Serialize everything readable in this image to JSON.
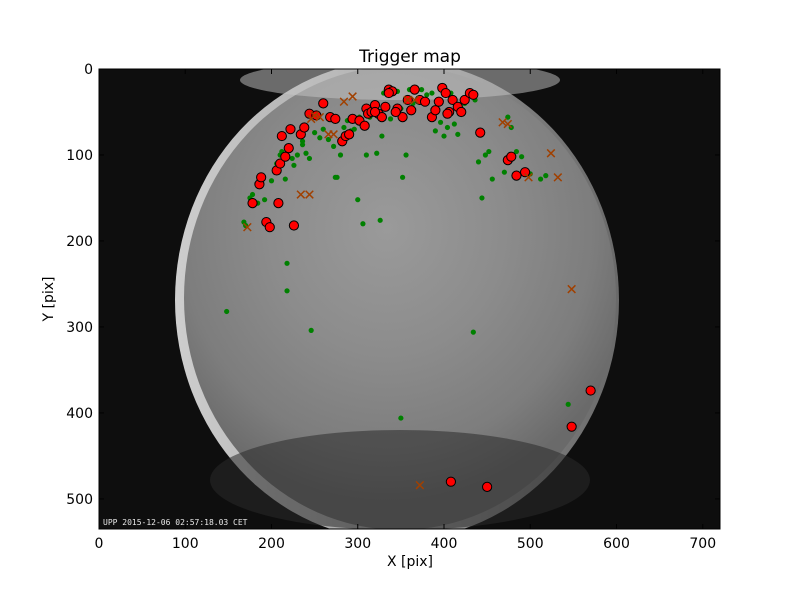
{
  "chart_data": {
    "type": "scatter",
    "title": "Trigger map",
    "xlabel": "X [pix]",
    "ylabel": "Y [pix]",
    "xlim": [
      0,
      720
    ],
    "ylim": [
      535,
      0
    ],
    "xticks": [
      0,
      100,
      200,
      300,
      400,
      500,
      600,
      700
    ],
    "yticks": [
      0,
      100,
      200,
      300,
      400,
      500
    ],
    "grid": false,
    "background_image": "all-sky camera frame (fisheye)",
    "timestamp_text": "UPP 2015-12-06 02:57:18.03 CET",
    "series": [
      {
        "marker": "small-dot",
        "color": "#008000",
        "points": [
          [
            168,
            178
          ],
          [
            170,
            182
          ],
          [
            175,
            150
          ],
          [
            178,
            146
          ],
          [
            184,
            156
          ],
          [
            192,
            152
          ],
          [
            200,
            130
          ],
          [
            204,
            120
          ],
          [
            206,
            110
          ],
          [
            210,
            100
          ],
          [
            212,
            96
          ],
          [
            216,
            128
          ],
          [
            218,
            90
          ],
          [
            224,
            104
          ],
          [
            226,
            112
          ],
          [
            230,
            100
          ],
          [
            236,
            84
          ],
          [
            240,
            98
          ],
          [
            244,
            104
          ],
          [
            250,
            74
          ],
          [
            256,
            80
          ],
          [
            260,
            70
          ],
          [
            266,
            82
          ],
          [
            272,
            90
          ],
          [
            274,
            126
          ],
          [
            276,
            126
          ],
          [
            280,
            100
          ],
          [
            284,
            68
          ],
          [
            288,
            60
          ],
          [
            292,
            72
          ],
          [
            296,
            70
          ],
          [
            300,
            62
          ],
          [
            302,
            56
          ],
          [
            306,
            180
          ],
          [
            310,
            100
          ],
          [
            314,
            56
          ],
          [
            318,
            52
          ],
          [
            322,
            98
          ],
          [
            326,
            176
          ],
          [
            328,
            78
          ],
          [
            330,
            28
          ],
          [
            334,
            46
          ],
          [
            338,
            58
          ],
          [
            342,
            24
          ],
          [
            346,
            26
          ],
          [
            350,
            46
          ],
          [
            352,
            126
          ],
          [
            356,
            100
          ],
          [
            360,
            24
          ],
          [
            364,
            40
          ],
          [
            368,
            22
          ],
          [
            374,
            24
          ],
          [
            380,
            30
          ],
          [
            386,
            28
          ],
          [
            390,
            72
          ],
          [
            396,
            62
          ],
          [
            400,
            78
          ],
          [
            404,
            68
          ],
          [
            408,
            28
          ],
          [
            412,
            64
          ],
          [
            416,
            76
          ],
          [
            420,
            46
          ],
          [
            424,
            40
          ],
          [
            428,
            30
          ],
          [
            436,
            36
          ],
          [
            440,
            108
          ],
          [
            444,
            150
          ],
          [
            448,
            100
          ],
          [
            452,
            96
          ],
          [
            456,
            128
          ],
          [
            470,
            120
          ],
          [
            474,
            56
          ],
          [
            478,
            68
          ],
          [
            484,
            96
          ],
          [
            490,
            102
          ],
          [
            500,
            122
          ],
          [
            512,
            128
          ],
          [
            518,
            124
          ],
          [
            544,
            390
          ],
          [
            350,
            406
          ],
          [
            434,
            306
          ],
          [
            246,
            304
          ],
          [
            218,
            258
          ],
          [
            218,
            226
          ],
          [
            148,
            282
          ],
          [
            236,
            88
          ],
          [
            300,
            152
          ]
        ]
      },
      {
        "marker": "circle",
        "color": "#ff0000",
        "edge_color": "#000000",
        "points": [
          [
            178,
            156
          ],
          [
            186,
            134
          ],
          [
            188,
            126
          ],
          [
            194,
            178
          ],
          [
            198,
            184
          ],
          [
            206,
            118
          ],
          [
            208,
            156
          ],
          [
            210,
            110
          ],
          [
            212,
            78
          ],
          [
            216,
            102
          ],
          [
            220,
            92
          ],
          [
            222,
            70
          ],
          [
            226,
            182
          ],
          [
            234,
            76
          ],
          [
            238,
            68
          ],
          [
            244,
            52
          ],
          [
            252,
            54
          ],
          [
            260,
            40
          ],
          [
            268,
            56
          ],
          [
            274,
            58
          ],
          [
            282,
            84
          ],
          [
            286,
            78
          ],
          [
            290,
            76
          ],
          [
            294,
            58
          ],
          [
            302,
            60
          ],
          [
            308,
            66
          ],
          [
            310,
            46
          ],
          [
            312,
            52
          ],
          [
            316,
            50
          ],
          [
            320,
            42
          ],
          [
            324,
            52
          ],
          [
            328,
            56
          ],
          [
            332,
            44
          ],
          [
            336,
            24
          ],
          [
            340,
            26
          ],
          [
            346,
            46
          ],
          [
            352,
            56
          ],
          [
            358,
            36
          ],
          [
            362,
            48
          ],
          [
            366,
            24
          ],
          [
            372,
            36
          ],
          [
            378,
            38
          ],
          [
            386,
            56
          ],
          [
            390,
            48
          ],
          [
            394,
            38
          ],
          [
            398,
            22
          ],
          [
            402,
            28
          ],
          [
            406,
            50
          ],
          [
            410,
            36
          ],
          [
            416,
            44
          ],
          [
            420,
            50
          ],
          [
            424,
            36
          ],
          [
            430,
            28
          ],
          [
            434,
            30
          ],
          [
            442,
            74
          ],
          [
            474,
            106
          ],
          [
            478,
            102
          ],
          [
            484,
            124
          ],
          [
            494,
            120
          ],
          [
            548,
            416
          ],
          [
            570,
            374
          ],
          [
            408,
            480
          ],
          [
            450,
            486
          ],
          [
            344,
            50
          ],
          [
            404,
            52
          ],
          [
            336,
            28
          ],
          [
            320,
            50
          ]
        ]
      },
      {
        "marker": "x",
        "color": "#a04000",
        "points": [
          [
            172,
            184
          ],
          [
            234,
            146
          ],
          [
            244,
            146
          ],
          [
            246,
            58
          ],
          [
            250,
            54
          ],
          [
            266,
            76
          ],
          [
            272,
            76
          ],
          [
            284,
            38
          ],
          [
            294,
            32
          ],
          [
            358,
            36
          ],
          [
            372,
            484
          ],
          [
            468,
            62
          ],
          [
            474,
            64
          ],
          [
            498,
            126
          ],
          [
            524,
            98
          ],
          [
            532,
            126
          ],
          [
            548,
            256
          ],
          [
            366,
            36
          ],
          [
            256,
            56
          ]
        ]
      }
    ]
  }
}
